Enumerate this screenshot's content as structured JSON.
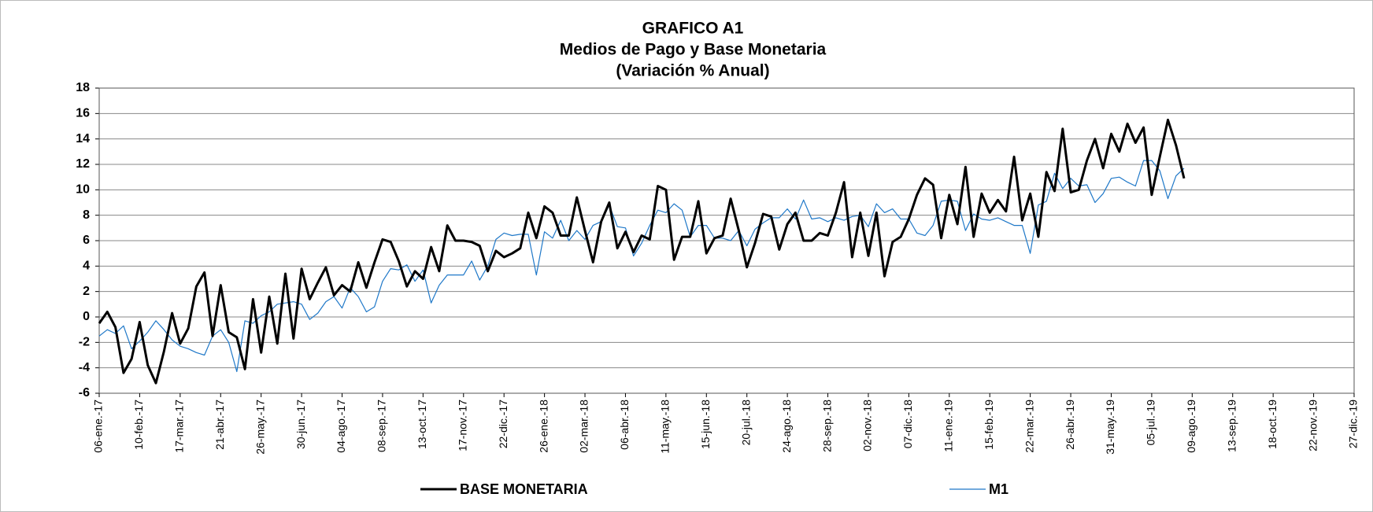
{
  "chart_data": {
    "type": "line",
    "title": "GRAFICO A1",
    "subtitle": [
      "Medios de Pago y Base Monetaria",
      "(Variación % Anual)"
    ],
    "categories": [
      "06-ene.-17",
      null,
      null,
      null,
      null,
      "10-feb.-17",
      null,
      null,
      null,
      null,
      "17-mar.-17",
      null,
      null,
      null,
      null,
      "21-abr.-17",
      null,
      null,
      null,
      null,
      "26-may.-17",
      null,
      null,
      null,
      null,
      "30-jun.-17",
      null,
      null,
      null,
      null,
      "04-ago.-17",
      null,
      null,
      null,
      null,
      "08-sep.-17",
      null,
      null,
      null,
      null,
      "13-oct.-17",
      null,
      null,
      null,
      null,
      "17-nov.-17",
      null,
      null,
      null,
      null,
      "22-dic.-17",
      null,
      null,
      null,
      null,
      "26-ene.-18",
      null,
      null,
      null,
      null,
      "02-mar.-18",
      null,
      null,
      null,
      null,
      "06-abr.-18",
      null,
      null,
      null,
      null,
      "11-may.-18",
      null,
      null,
      null,
      null,
      "15-jun.-18",
      null,
      null,
      null,
      null,
      "20-jul.-18",
      null,
      null,
      null,
      null,
      "24-ago.-18",
      null,
      null,
      null,
      null,
      "28-sep.-18",
      null,
      null,
      null,
      null,
      "02-nov.-18",
      null,
      null,
      null,
      null,
      "07-dic.-18",
      null,
      null,
      null,
      null,
      "11-ene.-19",
      null,
      null,
      null,
      null,
      "15-feb.-19",
      null,
      null,
      null,
      null,
      "22-mar.-19",
      null,
      null,
      null,
      null,
      "26-abr.-19",
      null,
      null,
      null,
      null,
      "31-may.-19",
      null,
      null,
      null,
      null,
      "05-jul.-19",
      null,
      null,
      null,
      null,
      "09-ago.-19",
      null,
      null,
      null,
      null,
      "13-sep.-19",
      null,
      null,
      null,
      null,
      "18-oct.-19",
      null,
      null,
      null,
      null,
      "22-nov.-19",
      null,
      null,
      null,
      null,
      "27-dic.-19"
    ],
    "series": [
      {
        "name": "BASE MONETARIA",
        "color": "#000000",
        "values": [
          -0.5,
          0.4,
          -0.8,
          -4.4,
          -3.3,
          -0.4,
          -3.8,
          -5.2,
          -2.7,
          0.3,
          -2.1,
          -0.9,
          2.4,
          3.5,
          -1.5,
          2.5,
          -1.2,
          -1.6,
          -4.1,
          1.4,
          -2.8,
          1.6,
          -2.1,
          3.4,
          -1.7,
          3.8,
          1.4,
          2.7,
          3.9,
          1.7,
          2.5,
          2.0,
          4.3,
          2.3,
          4.3,
          6.1,
          5.9,
          4.4,
          2.4,
          3.6,
          3.0,
          5.5,
          3.6,
          7.2,
          6.0,
          6.0,
          5.9,
          5.6,
          3.6,
          5.2,
          4.7,
          5.0,
          5.4,
          8.2,
          6.2,
          8.7,
          8.2,
          6.4,
          6.4,
          9.4,
          6.8,
          4.3,
          7.5,
          9.0,
          5.4,
          6.7,
          5.1,
          6.4,
          6.1,
          10.3,
          10.0,
          4.5,
          6.3,
          6.3,
          9.1,
          5.0,
          6.2,
          6.4,
          9.3,
          6.8,
          3.9,
          5.8,
          8.1,
          7.9,
          5.3,
          7.3,
          8.2,
          6.0,
          6.0,
          6.6,
          6.4,
          8.2,
          10.6,
          4.7,
          8.2,
          4.8,
          8.2,
          3.2,
          5.9,
          6.3,
          7.7,
          9.6,
          10.9,
          10.4,
          6.2,
          9.6,
          7.3,
          11.8,
          6.3,
          9.7,
          8.2,
          9.2,
          8.3,
          12.6,
          7.6,
          9.7,
          6.3,
          11.4,
          9.9,
          14.8,
          9.8,
          10.0,
          12.3,
          14.0,
          11.7,
          14.4,
          13.0,
          15.2,
          13.7,
          14.9,
          9.6,
          12.6,
          15.5,
          13.5,
          10.9,
          null,
          null,
          null,
          null,
          null,
          null,
          null,
          null,
          null,
          null,
          null,
          null,
          null,
          null,
          null,
          null,
          null,
          null,
          null,
          null,
          null
        ]
      },
      {
        "name": "M1",
        "color": "#1f78c8",
        "values": [
          -1.5,
          -1.0,
          -1.3,
          -0.7,
          -2.5,
          -1.9,
          -1.2,
          -0.3,
          -1.0,
          -1.8,
          -2.3,
          -2.5,
          -2.8,
          -3.0,
          -1.5,
          -1.0,
          -2.0,
          -4.3,
          -0.3,
          -0.5,
          0.1,
          0.4,
          1.0,
          1.1,
          1.2,
          1.0,
          -0.2,
          0.3,
          1.2,
          1.6,
          0.7,
          2.3,
          1.6,
          0.4,
          0.8,
          2.8,
          3.8,
          3.7,
          4.1,
          2.8,
          3.7,
          1.1,
          2.5,
          3.3,
          3.3,
          3.3,
          4.4,
          2.9,
          4.0,
          6.1,
          6.6,
          6.4,
          6.5,
          6.5,
          3.3,
          6.7,
          6.2,
          7.6,
          6.0,
          6.8,
          6.1,
          7.2,
          7.5,
          8.8,
          7.1,
          7.0,
          4.8,
          5.8,
          7.2,
          8.4,
          8.2,
          8.9,
          8.4,
          6.3,
          7.2,
          7.2,
          6.2,
          6.2,
          6.0,
          6.8,
          5.6,
          6.9,
          7.4,
          7.8,
          7.8,
          8.5,
          7.7,
          9.2,
          7.7,
          7.8,
          7.5,
          7.8,
          7.6,
          7.9,
          8.0,
          7.1,
          8.9,
          8.2,
          8.5,
          7.7,
          7.7,
          6.6,
          6.4,
          7.2,
          9.1,
          9.2,
          9.1,
          6.8,
          8.1,
          7.7,
          7.6,
          7.8,
          7.5,
          7.2,
          7.2,
          5.0,
          8.8,
          9.1,
          11.3,
          10.1,
          10.9,
          10.3,
          10.4,
          9.0,
          9.7,
          10.9,
          11.0,
          10.6,
          10.3,
          12.3,
          12.3,
          11.5,
          9.3,
          11.1,
          11.7,
          null,
          null,
          null,
          null,
          null,
          null,
          null,
          null,
          null,
          null,
          null,
          null,
          null,
          null,
          null,
          null,
          null,
          null,
          null,
          null,
          null
        ]
      }
    ],
    "ylim": [
      -6,
      18
    ],
    "yticks": [
      -6,
      -4,
      -2,
      0,
      2,
      4,
      6,
      8,
      10,
      12,
      14,
      16,
      18
    ],
    "grid": true,
    "legend": "bottom"
  }
}
